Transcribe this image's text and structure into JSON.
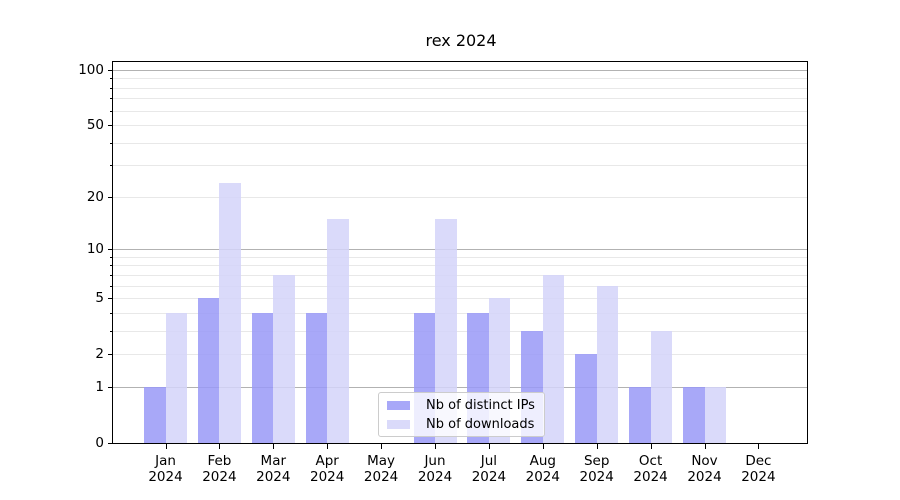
{
  "title": "rex 2024",
  "chart_data": {
    "type": "bar",
    "title": "rex 2024",
    "categories": [
      "Jan 2024",
      "Feb 2024",
      "Mar 2024",
      "Apr 2024",
      "May 2024",
      "Jun 2024",
      "Jul 2024",
      "Aug 2024",
      "Sep 2024",
      "Oct 2024",
      "Nov 2024",
      "Dec 2024"
    ],
    "series": [
      {
        "name": "Nb of distinct IPs",
        "color": "rgba(153,153,247,0.85)",
        "values": [
          1,
          5,
          4,
          4,
          0,
          4,
          4,
          3,
          2,
          1,
          1,
          0
        ]
      },
      {
        "name": "Nb of downloads",
        "color": "rgba(212,212,249,0.85)",
        "values": [
          4,
          24,
          7,
          15,
          0,
          15,
          5,
          7,
          6,
          3,
          1,
          0
        ]
      }
    ],
    "xlabel": "",
    "ylabel": "",
    "yscale": "log1p",
    "ylim": [
      0,
      110
    ],
    "yticks": [
      0,
      1,
      2,
      5,
      10,
      20,
      50,
      100
    ],
    "grid_major": [
      1,
      10,
      100
    ],
    "grid_minor": [
      2,
      3,
      4,
      5,
      6,
      7,
      8,
      9,
      20,
      30,
      40,
      50,
      60,
      70,
      80,
      90
    ],
    "grid": "on",
    "legend_position": "inside lower center"
  },
  "colors": {
    "bar_dark": "rgba(153,153,247,0.85)",
    "bar_light": "rgba(212,212,249,0.85)",
    "grid_major": "#b2b2b2",
    "grid_minor": "#e8e8e8",
    "spine": "#000000",
    "text": "#000000",
    "legend_border": "#cccccc"
  }
}
